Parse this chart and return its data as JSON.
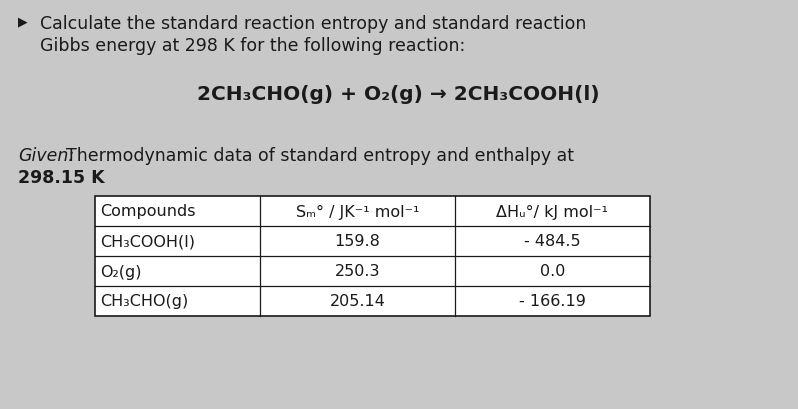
{
  "background_color": "#c8c8c8",
  "bullet_text_line1": "Calculate the standard reaction entropy and standard reaction",
  "bullet_text_line2": "Gibbs energy at 298 K for the following reaction:",
  "reaction_parts": {
    "full": "2CH₃CHO(g) + O₂(g) → 2CH₃COOH(l)"
  },
  "given_word": "Given:",
  "given_rest": "Thermodynamic data of standard entropy and enthalpy at",
  "given_line2": "298.15 K",
  "table_header_col1": "Compounds",
  "table_header_col2": "Sₘ° / JK⁻¹ mol⁻¹",
  "table_header_col3": "ΔHᵤ°/ kJ mol⁻¹",
  "table_rows": [
    [
      "CH₃COOH(l)",
      "159.8",
      "- 484.5"
    ],
    [
      "O₂(g)",
      "250.3",
      "0.0"
    ],
    [
      "CH₃CHO(g)",
      "205.14",
      "- 166.19"
    ]
  ],
  "font_size_body": 12.5,
  "font_size_reaction": 14.5,
  "font_size_table": 11.5,
  "text_color": "#1a1a1a",
  "bullet_char": "▶"
}
